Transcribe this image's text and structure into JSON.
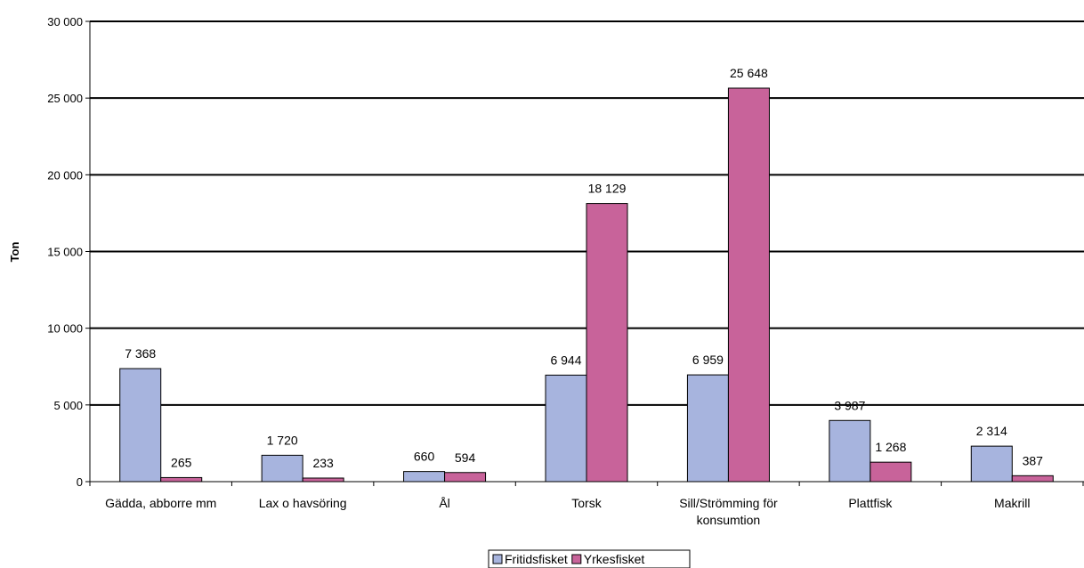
{
  "chart_data": {
    "type": "bar",
    "title": "",
    "xlabel": "",
    "ylabel": "Ton",
    "ylim": [
      0,
      30000
    ],
    "yticks": [
      0,
      5000,
      10000,
      15000,
      20000,
      25000,
      30000
    ],
    "ytick_labels": [
      "0",
      "5 000",
      "10 000",
      "15 000",
      "20 000",
      "25 000",
      "30 000"
    ],
    "grid": true,
    "legend_position": "bottom",
    "categories": [
      [
        "Gädda, abborre mm"
      ],
      [
        "Lax o havsöring"
      ],
      [
        "Ål"
      ],
      [
        "Torsk"
      ],
      [
        "Sill/Strömming för",
        "konsumtion"
      ],
      [
        "Plattfisk"
      ],
      [
        "Makrill"
      ]
    ],
    "series": [
      {
        "name": "Fritidsfisket",
        "color": "#A7B4DE",
        "values": [
          7368,
          1720,
          660,
          6944,
          6959,
          3987,
          2314
        ],
        "labels": [
          "7 368",
          "1 720",
          "660",
          "6 944",
          "6 959",
          "3 987",
          "2 314"
        ]
      },
      {
        "name": "Yrkesfisket",
        "color": "#C8639A",
        "values": [
          265,
          233,
          594,
          18129,
          25648,
          1268,
          387
        ],
        "labels": [
          "265",
          "233",
          "594",
          "18 129",
          "25 648",
          "1 268",
          "387"
        ]
      }
    ]
  }
}
